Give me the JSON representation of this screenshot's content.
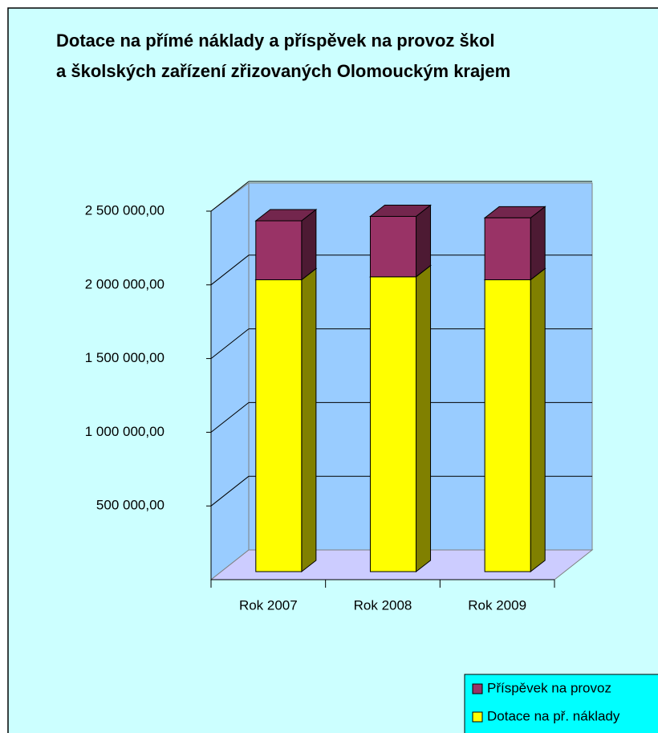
{
  "chart_data": {
    "type": "bar3d_stacked",
    "title": [
      "Dotace na přímé náklady a příspěvek na provoz škol",
      "a školských zařízení zřizovaných Olomouckým krajem"
    ],
    "categories": [
      "Rok 2007",
      "Rok 2008",
      "Rok 2009"
    ],
    "series": [
      {
        "name": "Dotace na př. náklady",
        "color": "#ffff00",
        "values": [
          1980000,
          2000000,
          1980000
        ]
      },
      {
        "name": "Příspěvek na provoz",
        "color": "#993366",
        "values": [
          400000,
          410000,
          420000
        ]
      }
    ],
    "ylim": [
      0,
      2500000
    ],
    "yticks": [
      {
        "value": 500000,
        "label": "500 000,00"
      },
      {
        "value": 1000000,
        "label": "1 000 000,00"
      },
      {
        "value": 1500000,
        "label": "1 500 000,00"
      },
      {
        "value": 2000000,
        "label": "2 000 000,00"
      },
      {
        "value": 2500000,
        "label": "2 500 000,00"
      }
    ],
    "grid": true
  }
}
